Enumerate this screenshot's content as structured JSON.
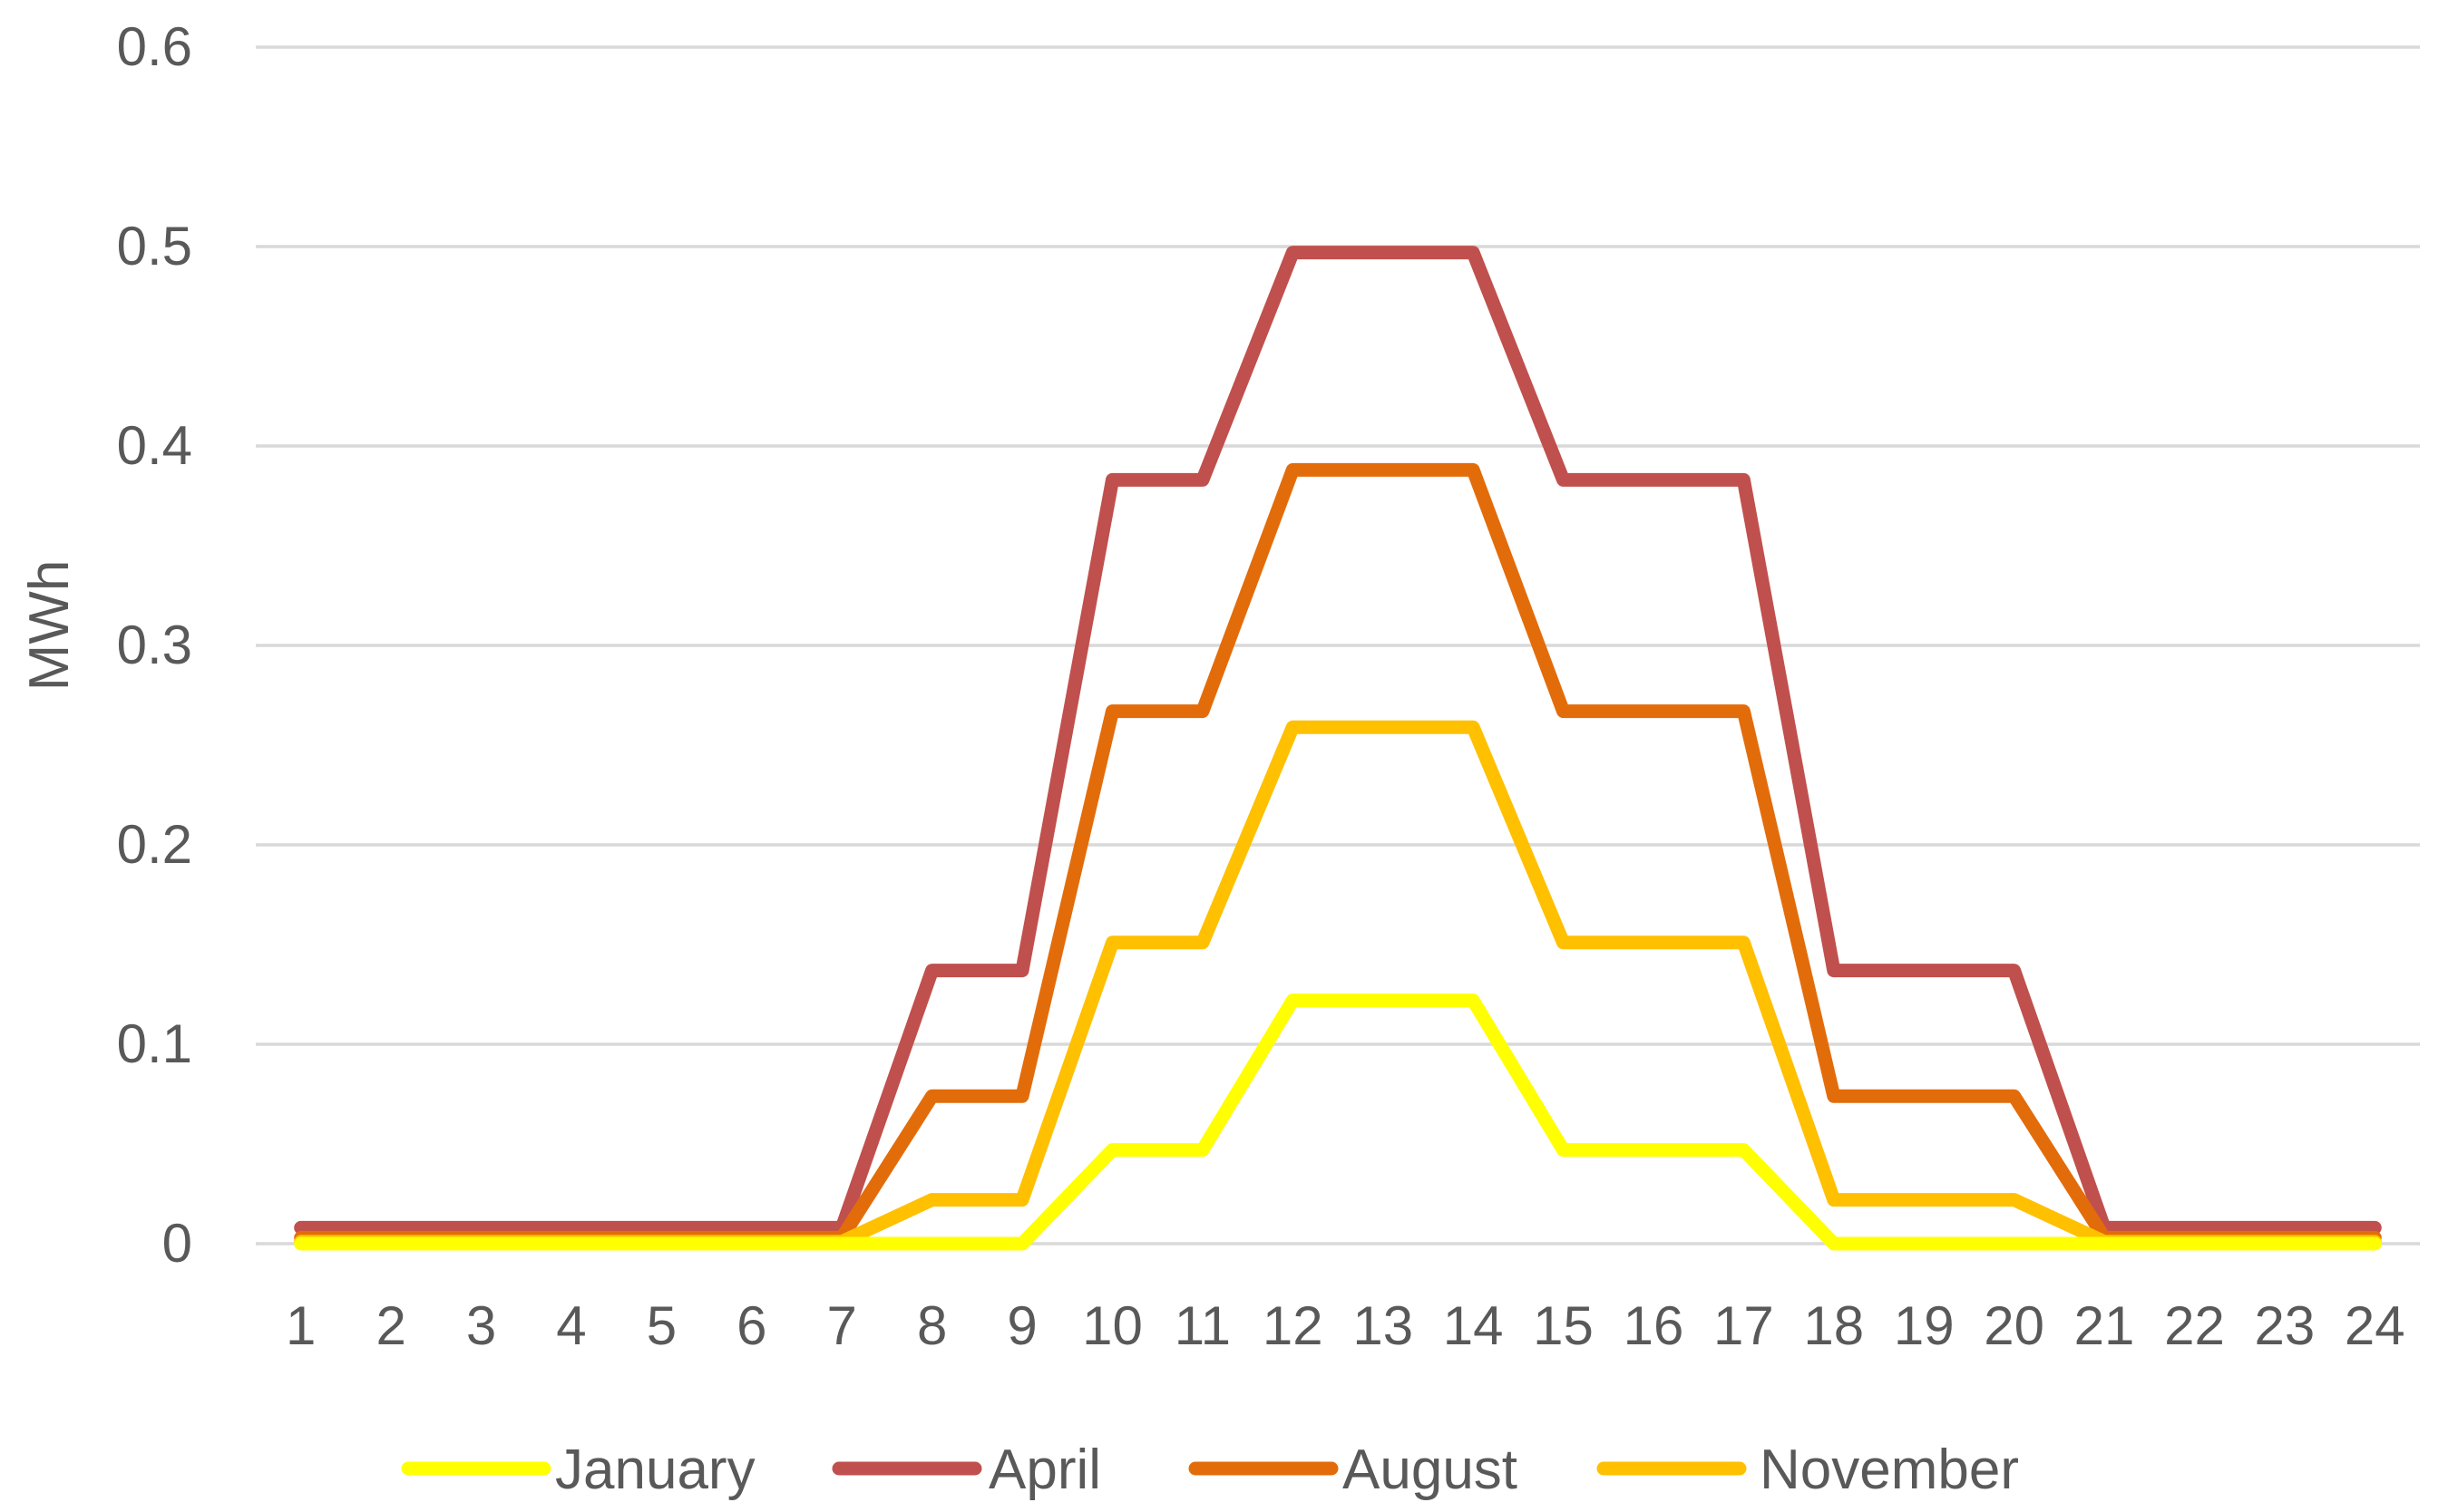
{
  "chart_data": {
    "type": "line",
    "title": "",
    "xlabel": "",
    "ylabel": "MWh",
    "categories": [
      "1",
      "2",
      "3",
      "4",
      "5",
      "6",
      "7",
      "8",
      "9",
      "10",
      "11",
      "12",
      "13",
      "14",
      "15",
      "16",
      "17",
      "18",
      "19",
      "20",
      "21",
      "22",
      "23",
      "24"
    ],
    "ylim": [
      0,
      0.6
    ],
    "yticks": [
      "0",
      "0.1",
      "0.2",
      "0.3",
      "0.4",
      "0.5",
      "0.6"
    ],
    "grid": "horizontal",
    "legend_position": "bottom",
    "series": [
      {
        "name": "January",
        "color": "#FFFF00",
        "values": [
          0,
          0,
          0,
          0,
          0,
          0,
          0,
          0,
          0,
          0.047,
          0.047,
          0.122,
          0.122,
          0.122,
          0.047,
          0.047,
          0.047,
          0,
          0,
          0,
          0,
          0,
          0,
          0
        ]
      },
      {
        "name": "April",
        "color": "#C0504D",
        "values": [
          0.008,
          0.008,
          0.008,
          0.008,
          0.008,
          0.008,
          0.008,
          0.137,
          0.137,
          0.383,
          0.383,
          0.497,
          0.497,
          0.497,
          0.383,
          0.383,
          0.383,
          0.137,
          0.137,
          0.137,
          0.008,
          0.008,
          0.008,
          0.008
        ]
      },
      {
        "name": "August",
        "color": "#E36C0A",
        "values": [
          0.003,
          0.003,
          0.003,
          0.003,
          0.003,
          0.003,
          0.003,
          0.074,
          0.074,
          0.267,
          0.267,
          0.388,
          0.388,
          0.388,
          0.267,
          0.267,
          0.267,
          0.074,
          0.074,
          0.074,
          0.003,
          0.003,
          0.003,
          0.003
        ]
      },
      {
        "name": "November",
        "color": "#FFC000",
        "values": [
          0.001,
          0.001,
          0.001,
          0.001,
          0.001,
          0.001,
          0.001,
          0.022,
          0.022,
          0.151,
          0.151,
          0.259,
          0.259,
          0.259,
          0.151,
          0.151,
          0.151,
          0.022,
          0.022,
          0.022,
          0.001,
          0.001,
          0.001,
          0.001
        ]
      }
    ]
  }
}
